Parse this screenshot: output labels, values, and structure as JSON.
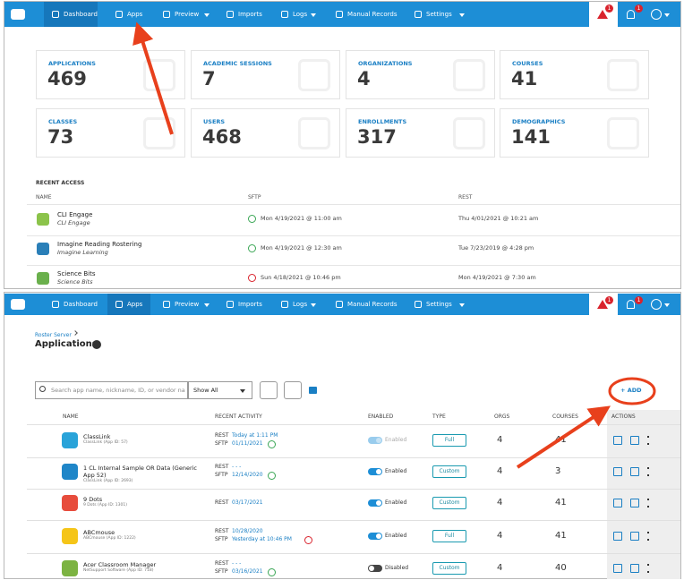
{
  "top": {
    "nav": {
      "active_index": 0,
      "items": [
        {
          "label": "Dashboard",
          "menu": false
        },
        {
          "label": "Apps",
          "menu": false
        },
        {
          "label": "Preview",
          "menu": true
        },
        {
          "label": "Imports",
          "menu": false
        },
        {
          "label": "Logs",
          "menu": true
        },
        {
          "label": "Manual Records",
          "menu": false
        },
        {
          "label": "Settings",
          "menu": true
        }
      ],
      "badges": [
        "1",
        "1"
      ]
    },
    "stats": [
      {
        "label": "APPLICATIONS",
        "value": 469
      },
      {
        "label": "ACADEMIC SESSIONS",
        "value": 7
      },
      {
        "label": "ORGANIZATIONS",
        "value": 4
      },
      {
        "label": "COURSES",
        "value": 41
      },
      {
        "label": "CLASSES",
        "value": 73
      },
      {
        "label": "USERS",
        "value": 468
      },
      {
        "label": "ENROLLMENTS",
        "value": 317
      },
      {
        "label": "DEMOGRAPHICS",
        "value": 141
      }
    ],
    "recent": {
      "title": "RECENT ACCESS",
      "headers": [
        "NAME",
        "SFTP",
        "REST"
      ],
      "rows": [
        {
          "name": "CLI Engage",
          "sub": "CLI Engage",
          "sftp": "Mon 4/19/2021 @ 11:00 am",
          "sftp_status": "ok",
          "rest": "Thu 4/01/2021 @ 10:21 am",
          "color": "#8bc34a"
        },
        {
          "name": "Imagine Reading Rostering",
          "sub": "Imagine Learning",
          "sftp": "Mon 4/19/2021 @ 12:30 am",
          "sftp_status": "ok",
          "rest": "Tue 7/23/2019 @ 4:28 pm",
          "color": "#2a7fb8"
        },
        {
          "name": "Science Bits",
          "sub": "Science Bits",
          "sftp": "Sun 4/18/2021 @ 10:46 pm",
          "sftp_status": "error",
          "rest": "Mon 4/19/2021 @ 7:30 am",
          "color": "#6ab04c"
        }
      ]
    }
  },
  "bottom": {
    "nav": {
      "active_index": 1,
      "items": [
        {
          "label": "Dashboard",
          "menu": false
        },
        {
          "label": "Apps",
          "menu": false
        },
        {
          "label": "Preview",
          "menu": true
        },
        {
          "label": "Imports",
          "menu": false
        },
        {
          "label": "Logs",
          "menu": true
        },
        {
          "label": "Manual Records",
          "menu": false
        },
        {
          "label": "Settings",
          "menu": true
        }
      ],
      "badges": [
        "1",
        "1"
      ]
    },
    "breadcrumb": "Roster Server",
    "title": "Applications",
    "search_placeholder": "Search app name, nickname, ID, or vendor na",
    "filter": "Show All",
    "add": "+ ADD",
    "headers": [
      "NAME",
      "RECENT ACTIVITY",
      "ENABLED",
      "TYPE",
      "ORGS",
      "COURSES",
      "ACTIONS"
    ],
    "rows": [
      {
        "name": "ClassLink",
        "sub": "ClassLink (App ID: 57)",
        "activity": [
          {
            "k": "REST",
            "v": "Today at 1:11 PM"
          },
          {
            "k": "SFTP",
            "v": "01/11/2021",
            "status": "ok"
          }
        ],
        "enabled": "Enabled",
        "on": true,
        "faded": true,
        "type": "Full",
        "orgs": 4,
        "courses": 41,
        "color": "#29a3d9"
      },
      {
        "name": "1 CL Internal Sample OR Data (Generic App 52)",
        "sub": "ClassLink (App ID: 2693)",
        "activity": [
          {
            "k": "REST",
            "v": "- - -"
          },
          {
            "k": "SFTP",
            "v": "12/14/2020",
            "status": "ok"
          }
        ],
        "enabled": "Enabled",
        "on": true,
        "faded": false,
        "type": "Custom",
        "orgs": 4,
        "courses": 3,
        "color": "#1f86c8"
      },
      {
        "name": "9 Dots",
        "sub": "9 Dots (App ID: 1301)",
        "activity": [
          {
            "k": "REST",
            "v": "03/17/2021"
          }
        ],
        "enabled": "Enabled",
        "on": true,
        "faded": false,
        "type": "Custom",
        "orgs": 4,
        "courses": 41,
        "color": "#e74c3c"
      },
      {
        "name": "ABCmouse",
        "sub": "ABCmouse (App ID: 1222)",
        "activity": [
          {
            "k": "REST",
            "v": "10/28/2020"
          },
          {
            "k": "SFTP",
            "v": "Yesterday at 10:46 PM",
            "status": "error"
          }
        ],
        "enabled": "Enabled",
        "on": true,
        "faded": false,
        "type": "Full",
        "orgs": 4,
        "courses": 41,
        "color": "#f5c518"
      },
      {
        "name": "Acer Classroom Manager",
        "sub": "NetSupport Software (App ID: 718)",
        "activity": [
          {
            "k": "REST",
            "v": "- - -"
          },
          {
            "k": "SFTP",
            "v": "03/16/2021",
            "status": "ok"
          }
        ],
        "enabled": "Disabled",
        "on": false,
        "faded": false,
        "type": "Custom",
        "orgs": 4,
        "courses": 40,
        "color": "#7cb342"
      }
    ]
  }
}
